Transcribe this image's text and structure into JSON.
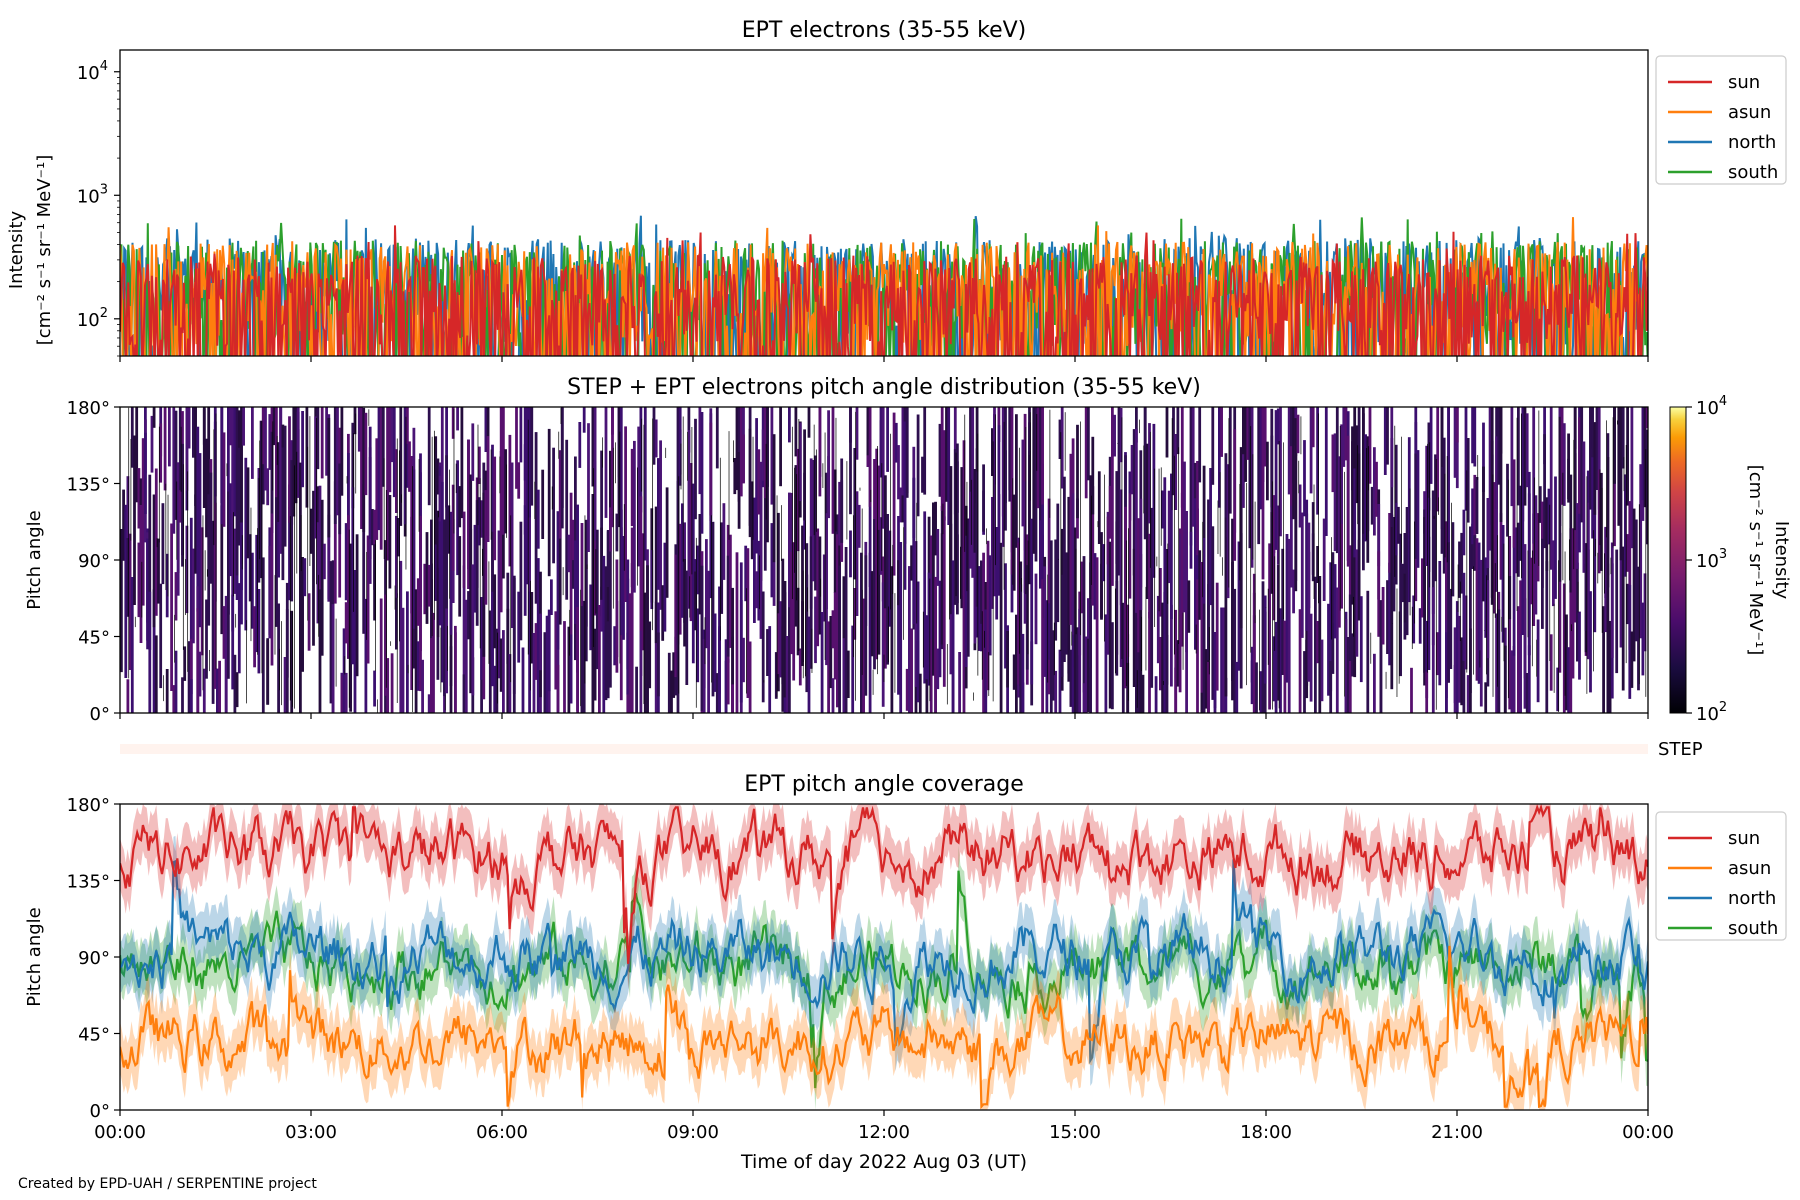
{
  "figure": {
    "credit": "Created by EPD-UAH / SERPENTINE project",
    "xlabel": "Time of day 2022 Aug 03 (UT)",
    "xticks": [
      "00:00",
      "03:00",
      "06:00",
      "09:00",
      "12:00",
      "15:00",
      "18:00",
      "21:00",
      "00:00"
    ]
  },
  "chart_data": [
    {
      "type": "line",
      "title": "EPT electrons (35-55 keV)",
      "ylabel": [
        "Intensity",
        "[cm⁻² s⁻¹ sr⁻¹ MeV⁻¹]"
      ],
      "yscale": "log",
      "ylim": [
        50,
        15000
      ],
      "yticks": [
        {
          "base": "10",
          "exp": "2",
          "value": 100
        },
        {
          "base": "10",
          "exp": "3",
          "value": 1000
        },
        {
          "base": "10",
          "exp": "4",
          "value": 10000
        }
      ],
      "legend_position": "outside-right-top",
      "x_unit": "hours since 2022-08-03 00:00 UT",
      "xlim": [
        0,
        24
      ],
      "series": [
        {
          "name": "sun",
          "color": "#d62728",
          "range": [
            50,
            330
          ]
        },
        {
          "name": "asun",
          "color": "#ff7f0e",
          "range": [
            50,
            420
          ]
        },
        {
          "name": "north",
          "color": "#1f77b4",
          "range": [
            50,
            450
          ]
        },
        {
          "name": "south",
          "color": "#2ca02c",
          "range": [
            50,
            430
          ]
        }
      ]
    },
    {
      "type": "heatmap",
      "title": "STEP + EPT electrons pitch angle distribution (35-55 keV)",
      "ylabel": "Pitch angle",
      "ylim": [
        0,
        180
      ],
      "yticks": [
        "0°",
        "45°",
        "90°",
        "135°",
        "180°"
      ],
      "colorbar": {
        "label": "Intensity",
        "units": "[cm⁻² s⁻¹ sr⁻¹ MeV⁻¹]",
        "scale": "log",
        "range": [
          100,
          10000
        ],
        "ticks": [
          {
            "base": "10",
            "exp": "2"
          },
          {
            "base": "10",
            "exp": "3"
          },
          {
            "base": "10",
            "exp": "4"
          }
        ],
        "colormap": "inferno"
      },
      "typical_value": 220
    },
    {
      "type": "bar",
      "label": "STEP",
      "color": "#fff3ee",
      "note": "STEP coverage strip"
    },
    {
      "type": "line",
      "title": "EPT pitch angle coverage",
      "ylabel": "Pitch angle",
      "ylim": [
        0,
        180
      ],
      "yticks": [
        "0°",
        "45°",
        "90°",
        "135°",
        "180°"
      ],
      "legend_position": "outside-right-top",
      "series": [
        {
          "name": "sun",
          "color": "#d62728",
          "mean": 150,
          "band": 15
        },
        {
          "name": "asun",
          "color": "#ff7f0e",
          "mean": 40,
          "band": 15
        },
        {
          "name": "north",
          "color": "#1f77b4",
          "mean": 92,
          "band": 15
        },
        {
          "name": "south",
          "color": "#2ca02c",
          "mean": 85,
          "band": 15
        }
      ]
    }
  ]
}
